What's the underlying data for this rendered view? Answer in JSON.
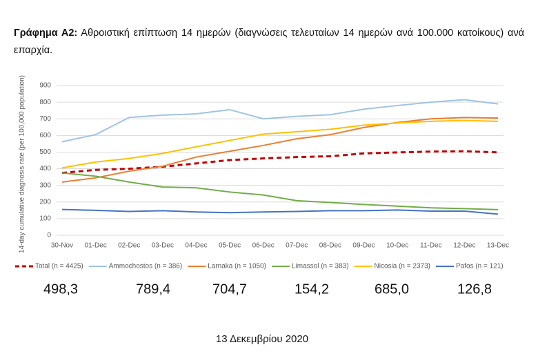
{
  "caption": {
    "label": "Γράφημα Α2:",
    "text": "Αθροιστική επίπτωση 14 ημερών (διαγνώσεις τελευταίων 14 ημερών ανά 100.000 κατοίκους) ανά επαρχία."
  },
  "chart_data": {
    "type": "line",
    "y_label": "14-day cumulative diagnosis rate (per 100,000 population)",
    "categories": [
      "30-Nov",
      "01-Dec",
      "02-Dec",
      "03-Dec",
      "04-Dec",
      "05-Dec",
      "06-Dec",
      "07-Dec",
      "08-Dec",
      "09-Dec",
      "10-Dec",
      "11-Dec",
      "12-Dec",
      "13-Dec"
    ],
    "ylim": [
      0,
      900
    ],
    "yticks": [
      0,
      100,
      200,
      300,
      400,
      500,
      600,
      700,
      800,
      900
    ],
    "grid": true,
    "legend": "bottom",
    "series": [
      {
        "name": "Total (n = 4425)",
        "color": "#c00000",
        "line_style": "dashed",
        "values": [
          375,
          393,
          400,
          412,
          432,
          452,
          462,
          470,
          475,
          492,
          498,
          503,
          505,
          498.3
        ]
      },
      {
        "name": "Ammochostos (n = 386)",
        "color": "#9dc3e6",
        "values": [
          562,
          605,
          708,
          722,
          730,
          755,
          700,
          715,
          725,
          758,
          780,
          800,
          815,
          789.4
        ]
      },
      {
        "name": "Larnaka (n = 1050)",
        "color": "#ed7d31",
        "values": [
          320,
          345,
          385,
          415,
          470,
          505,
          540,
          580,
          605,
          648,
          678,
          700,
          708,
          704.7
        ]
      },
      {
        "name": "Limassol (n = 383)",
        "color": "#70ad47",
        "values": [
          375,
          355,
          320,
          290,
          285,
          260,
          242,
          208,
          197,
          185,
          175,
          165,
          160,
          154.2
        ]
      },
      {
        "name": "Nicosia (n = 2373)",
        "color": "#ffc000",
        "values": [
          405,
          440,
          462,
          492,
          532,
          570,
          608,
          622,
          637,
          662,
          675,
          685,
          690,
          685.0
        ]
      },
      {
        "name": "Pafos (n = 121)",
        "color": "#4472c4",
        "values": [
          155,
          150,
          143,
          148,
          140,
          136,
          140,
          143,
          148,
          148,
          152,
          145,
          145,
          126.8
        ]
      }
    ]
  },
  "summary_values": [
    "498,3",
    "789,4",
    "704,7",
    "154,2",
    "685,0",
    "126,8"
  ],
  "footer": "13 Δεκεμβρίου 2020"
}
